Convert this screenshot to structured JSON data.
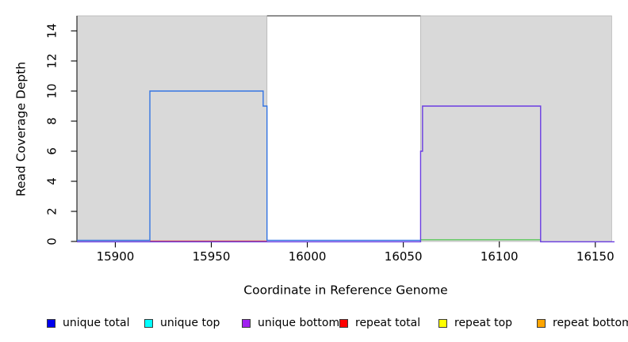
{
  "chart_data": {
    "type": "line",
    "title": "",
    "xlabel": "Coordinate in Reference Genome",
    "ylabel": "Read Coverage Depth",
    "xlim": [
      15880,
      16160
    ],
    "ylim": [
      0,
      15
    ],
    "xticks": [
      15900,
      15950,
      16000,
      16050,
      16100,
      16150
    ],
    "yticks": [
      0,
      2,
      4,
      6,
      8,
      10,
      12,
      14
    ],
    "grid": false,
    "legend_position": "bottom",
    "background_shading": [
      {
        "name": "repeat-region-left",
        "x0": 15880,
        "x1": 15979,
        "fill": "#d9d9d9",
        "border": "#b5b5b5"
      },
      {
        "name": "repeat-region-right",
        "x0": 16059,
        "x1": 16158.5,
        "fill": "#d9d9d9",
        "border": "#b5b5b5"
      }
    ],
    "annotations": [
      {
        "name": "clipped-coverage-line-at-15",
        "color": "#8f8f8f",
        "width": 2,
        "points": [
          [
            15979,
            15
          ],
          [
            16059,
            15
          ]
        ]
      },
      {
        "name": "green-zero-line",
        "color": "#5dc85d",
        "width": 1.4,
        "dy0": -2.2,
        "points": [
          [
            16059,
            0
          ],
          [
            16121.5,
            0
          ]
        ]
      }
    ],
    "series": [
      {
        "name": "unique total",
        "color": "#3575e2",
        "legend_color": "#0000ee",
        "dy0": -1.4,
        "points": [
          [
            15880,
            0
          ],
          [
            15918,
            0
          ],
          [
            15918,
            10
          ],
          [
            15977,
            10
          ],
          [
            15977,
            9
          ],
          [
            15979,
            9
          ],
          [
            15979,
            0
          ],
          [
            16059,
            0
          ]
        ]
      },
      {
        "name": "unique top",
        "color": "#00ffff",
        "legend_color": "#00ffff",
        "dy0": 0,
        "points": []
      },
      {
        "name": "unique bottom",
        "color": "#6a3ce2",
        "legend_color": "#a020f0",
        "dy0": 0.4,
        "points": [
          [
            15880,
            0
          ],
          [
            16059,
            0
          ],
          [
            16059,
            6
          ],
          [
            16060,
            6
          ],
          [
            16060,
            9
          ],
          [
            16121.5,
            9
          ],
          [
            16121.5,
            0
          ],
          [
            16160,
            0
          ]
        ]
      },
      {
        "name": "repeat total",
        "color": "#e04545",
        "legend_color": "#ff0000",
        "dy0": -0.4,
        "points": [
          [
            15918,
            0
          ],
          [
            15979,
            0
          ]
        ]
      },
      {
        "name": "repeat top",
        "color": "#ffff00",
        "legend_color": "#ffff00",
        "dy0": 0,
        "points": []
      },
      {
        "name": "repeat bottom",
        "color": "#ffa500",
        "legend_color": "#ffa500",
        "dy0": 0,
        "points": []
      }
    ],
    "legend": [
      {
        "label": "unique total",
        "color": "#0000ee"
      },
      {
        "label": "unique top",
        "color": "#00ffff"
      },
      {
        "label": "unique bottom",
        "color": "#a020f0"
      },
      {
        "label": "repeat total",
        "color": "#ff0000"
      },
      {
        "label": "repeat top",
        "color": "#ffff00"
      },
      {
        "label": "repeat bottom",
        "color": "#ffa500"
      }
    ],
    "axis_color": "#000000"
  }
}
